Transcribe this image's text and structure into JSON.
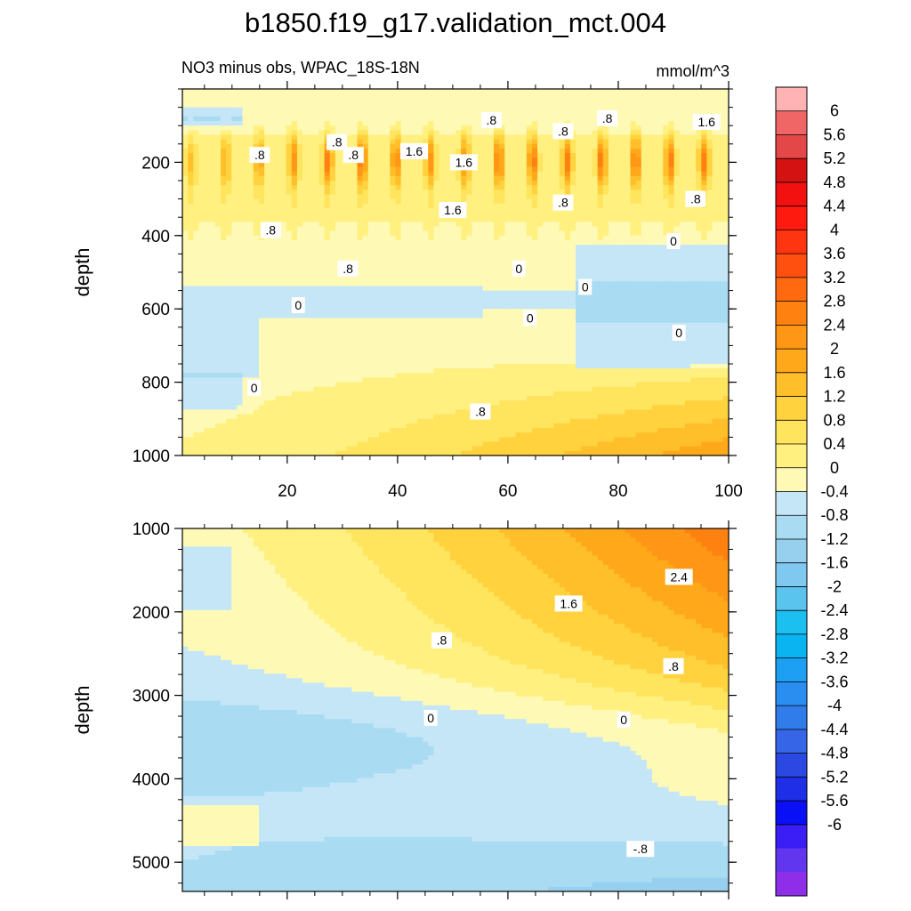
{
  "title": "b1850.f19_g17.validation_mct.004",
  "colors": {
    "levels": [
      "#8e2ee8",
      "#6236ee",
      "#3b1ef6",
      "#0a10f5",
      "#1f2fe8",
      "#2c48e2",
      "#3665e8",
      "#2f7cea",
      "#2a8ef0",
      "#1d9ff3",
      "#0ab4f1",
      "#1cc0f0",
      "#5ac3ee",
      "#7fc8ef",
      "#97d0ef",
      "#a9dbf2",
      "#c4e6f6",
      "#fff9b6",
      "#fff080",
      "#ffe45e",
      "#ffd23e",
      "#ffbf2b",
      "#ffa81a",
      "#ff9616",
      "#ff8110",
      "#ff6a10",
      "#ff5010",
      "#ff3410",
      "#ff1a10",
      "#f21010",
      "#d41212",
      "#e44747",
      "#f06565",
      "#ffb3b5"
    ]
  },
  "chart_data": [
    {
      "type": "heatmap",
      "panel": "upper",
      "subtitle_left": "NO3 minus obs, WPAC_18S-18N",
      "subtitle_right": "mmol/m^3",
      "ylabel": "depth",
      "xlabel": "",
      "xlim": [
        1,
        100
      ],
      "ylim": [
        1000,
        0
      ],
      "x_ticks": [
        20,
        40,
        60,
        80,
        100
      ],
      "y_ticks": [
        200,
        400,
        600,
        800,
        1000
      ],
      "contour_labels": [
        {
          "text": ".8",
          "x": 15,
          "y": 180
        },
        {
          "text": ".8",
          "x": 32,
          "y": 180
        },
        {
          "text": ".8",
          "x": 29,
          "y": 145
        },
        {
          "text": "1.6",
          "x": 43,
          "y": 170
        },
        {
          "text": "1.6",
          "x": 52,
          "y": 200
        },
        {
          "text": ".8",
          "x": 57,
          "y": 85
        },
        {
          "text": ".8",
          "x": 70,
          "y": 115
        },
        {
          "text": ".8",
          "x": 78,
          "y": 80
        },
        {
          "text": "1.6",
          "x": 96,
          "y": 90
        },
        {
          "text": "1.6",
          "x": 50,
          "y": 330
        },
        {
          "text": ".8",
          "x": 70,
          "y": 310
        },
        {
          "text": ".8",
          "x": 94,
          "y": 300
        },
        {
          "text": ".8",
          "x": 17,
          "y": 385
        },
        {
          "text": ".8",
          "x": 31,
          "y": 490
        },
        {
          "text": "0",
          "x": 90,
          "y": 415
        },
        {
          "text": "0",
          "x": 62,
          "y": 490
        },
        {
          "text": "0",
          "x": 74,
          "y": 540
        },
        {
          "text": "0",
          "x": 22,
          "y": 590
        },
        {
          "text": "0",
          "x": 64,
          "y": 625
        },
        {
          "text": "0",
          "x": 91,
          "y": 665
        },
        {
          "text": "0",
          "x": 14,
          "y": 815
        },
        {
          "text": ".8",
          "x": 55,
          "y": 880
        }
      ]
    },
    {
      "type": "heatmap",
      "panel": "lower",
      "ylabel": "depth",
      "xlabel": "",
      "xlim": [
        1,
        100
      ],
      "ylim": [
        5350,
        1000
      ],
      "y_ticks": [
        1000,
        2000,
        3000,
        4000,
        5000
      ],
      "contour_labels": [
        {
          "text": "2.4",
          "x": 91,
          "y": 1580
        },
        {
          "text": "1.6",
          "x": 71,
          "y": 1900
        },
        {
          "text": ".8",
          "x": 48,
          "y": 2340
        },
        {
          "text": ".8",
          "x": 90,
          "y": 2650
        },
        {
          "text": "0",
          "x": 46,
          "y": 3270
        },
        {
          "text": "0",
          "x": 81,
          "y": 3290
        },
        {
          "text": "-.8",
          "x": 84,
          "y": 4840
        }
      ]
    }
  ],
  "colorbar": {
    "labels": [
      "6",
      "5.6",
      "5.2",
      "4.8",
      "4.4",
      "4",
      "3.6",
      "3.2",
      "2.8",
      "2.4",
      "2",
      "1.6",
      "1.2",
      "0.8",
      "0.4",
      "0",
      "-0.4",
      "-0.8",
      "-1.2",
      "-1.6",
      "-2",
      "-2.4",
      "-2.8",
      "-3.2",
      "-3.6",
      "-4",
      "-4.4",
      "-4.8",
      "-5.2",
      "-5.6",
      "-6"
    ]
  }
}
